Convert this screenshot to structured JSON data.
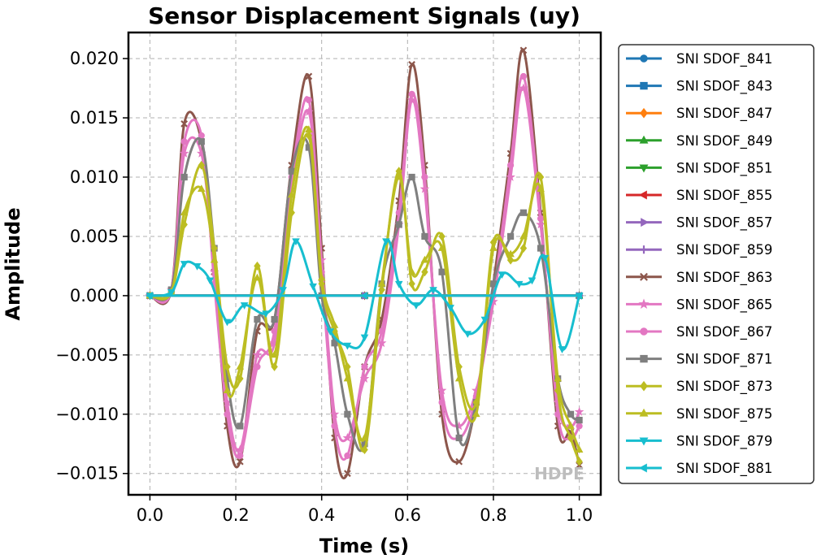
{
  "chart_data": {
    "type": "line",
    "title": "Sensor Displacement Signals (uy)",
    "xlabel": "Time (s)",
    "ylabel": "Amplitude",
    "xlim": [
      -0.05,
      1.05
    ],
    "ylim": [
      -0.0168,
      0.0222
    ],
    "x_ticks": [
      0.0,
      0.2,
      0.4,
      0.6,
      0.8,
      1.0
    ],
    "x_tick_labels": [
      "0.0",
      "0.2",
      "0.4",
      "0.6",
      "0.8",
      "1.0"
    ],
    "y_ticks": [
      -0.015,
      -0.01,
      -0.005,
      0.0,
      0.005,
      0.01,
      0.015,
      0.02
    ],
    "y_tick_labels": [
      "−0.015",
      "−0.010",
      "−0.005",
      "0.000",
      "0.005",
      "0.010",
      "0.015",
      "0.020"
    ],
    "grid": true,
    "legend_position": "outside-right",
    "annotation": "HDPE",
    "series": [
      {
        "name": "SNI SDOF_841",
        "color": "#1f77b4",
        "marker": "circle",
        "x": [
          0.0,
          0.5,
          1.0
        ],
        "y": [
          0.0,
          0.0,
          0.0
        ]
      },
      {
        "name": "SNI SDOF_843",
        "color": "#1f77b4",
        "marker": "square",
        "x": [
          0.0,
          0.5,
          1.0
        ],
        "y": [
          0.0,
          0.0,
          0.0
        ]
      },
      {
        "name": "SNI SDOF_847",
        "color": "#ff7f0e",
        "marker": "diamond",
        "x": [
          0.0,
          0.5,
          1.0
        ],
        "y": [
          0.0,
          0.0,
          0.0
        ]
      },
      {
        "name": "SNI SDOF_849",
        "color": "#2ca02c",
        "marker": "triangle-up",
        "x": [
          0.0,
          0.5,
          1.0
        ],
        "y": [
          0.0,
          0.0,
          0.0
        ]
      },
      {
        "name": "SNI SDOF_851",
        "color": "#2ca02c",
        "marker": "triangle-down",
        "x": [
          0.0,
          0.5,
          1.0
        ],
        "y": [
          0.0,
          0.0,
          0.0
        ]
      },
      {
        "name": "SNI SDOF_855",
        "color": "#d62728",
        "marker": "triangle-left",
        "x": [
          0.0,
          0.5,
          1.0
        ],
        "y": [
          0.0,
          0.0,
          0.0
        ]
      },
      {
        "name": "SNI SDOF_857",
        "color": "#9467bd",
        "marker": "triangle-right",
        "x": [
          0.0,
          0.5,
          1.0
        ],
        "y": [
          0.0,
          0.0,
          0.0
        ]
      },
      {
        "name": "SNI SDOF_859",
        "color": "#9467bd",
        "marker": "plus",
        "x": [
          0.0,
          0.5,
          1.0
        ],
        "y": [
          0.0,
          0.0,
          0.0
        ]
      },
      {
        "name": "SNI SDOF_863",
        "color": "#8c564b",
        "marker": "x",
        "x": [
          0.0,
          0.05,
          0.08,
          0.12,
          0.15,
          0.18,
          0.21,
          0.25,
          0.29,
          0.33,
          0.37,
          0.4,
          0.43,
          0.46,
          0.5,
          0.54,
          0.58,
          0.61,
          0.64,
          0.68,
          0.72,
          0.76,
          0.8,
          0.84,
          0.87,
          0.91,
          0.95,
          0.98,
          1.0
        ],
        "y": [
          0.0,
          0.0005,
          0.0145,
          0.013,
          0.002,
          -0.011,
          -0.014,
          -0.003,
          -0.002,
          0.011,
          0.0185,
          0.004,
          -0.012,
          -0.015,
          -0.006,
          -0.002,
          0.008,
          0.0195,
          0.011,
          -0.01,
          -0.014,
          -0.009,
          0.001,
          0.012,
          0.0207,
          0.007,
          -0.011,
          -0.0115,
          -0.0143
        ]
      },
      {
        "name": "SNI SDOF_865",
        "color": "#e377c2",
        "marker": "star",
        "x": [
          0.0,
          0.05,
          0.08,
          0.12,
          0.15,
          0.18,
          0.21,
          0.25,
          0.29,
          0.33,
          0.37,
          0.4,
          0.43,
          0.46,
          0.5,
          0.54,
          0.58,
          0.61,
          0.64,
          0.68,
          0.72,
          0.76,
          0.8,
          0.84,
          0.87,
          0.91,
          0.95,
          0.98,
          1.0
        ],
        "y": [
          0.0,
          0.0005,
          0.012,
          0.012,
          0.002,
          -0.009,
          -0.013,
          -0.005,
          -0.004,
          0.009,
          0.0155,
          0.003,
          -0.01,
          -0.012,
          -0.007,
          -0.004,
          0.006,
          0.0165,
          0.009,
          -0.008,
          -0.011,
          -0.008,
          -0.0005,
          0.01,
          0.0175,
          0.006,
          -0.009,
          -0.011,
          -0.0098
        ]
      },
      {
        "name": "SNI SDOF_867",
        "color": "#e377c2",
        "marker": "circle",
        "x": [
          0.0,
          0.05,
          0.08,
          0.12,
          0.15,
          0.18,
          0.21,
          0.25,
          0.29,
          0.33,
          0.37,
          0.4,
          0.43,
          0.46,
          0.5,
          0.54,
          0.58,
          0.61,
          0.64,
          0.68,
          0.72,
          0.76,
          0.8,
          0.84,
          0.87,
          0.91,
          0.95,
          0.98,
          1.0
        ],
        "y": [
          0.0,
          0.0005,
          0.013,
          0.0135,
          0.001,
          -0.01,
          -0.0135,
          -0.006,
          -0.003,
          0.01,
          0.0165,
          0.002,
          -0.011,
          -0.0135,
          -0.006,
          -0.003,
          0.007,
          0.017,
          0.01,
          -0.009,
          -0.012,
          -0.0085,
          0.0,
          0.011,
          0.0185,
          0.0065,
          -0.01,
          -0.012,
          -0.011
        ]
      },
      {
        "name": "SNI SDOF_871",
        "color": "#7f7f7f",
        "marker": "square",
        "x": [
          0.0,
          0.05,
          0.08,
          0.12,
          0.15,
          0.18,
          0.21,
          0.25,
          0.29,
          0.33,
          0.37,
          0.4,
          0.43,
          0.46,
          0.5,
          0.54,
          0.58,
          0.61,
          0.64,
          0.68,
          0.72,
          0.76,
          0.8,
          0.84,
          0.87,
          0.91,
          0.95,
          0.98,
          1.0
        ],
        "y": [
          0.0,
          0.0005,
          0.01,
          0.013,
          0.004,
          -0.007,
          -0.011,
          -0.002,
          -0.002,
          0.0105,
          0.0125,
          0.0,
          -0.004,
          -0.01,
          -0.0125,
          0.001,
          0.006,
          0.01,
          0.005,
          0.002,
          -0.012,
          -0.009,
          0.001,
          0.005,
          0.007,
          0.004,
          -0.007,
          -0.01,
          -0.0105
        ]
      },
      {
        "name": "SNI SDOF_873",
        "color": "#bcbd22",
        "marker": "diamond",
        "x": [
          0.0,
          0.05,
          0.08,
          0.12,
          0.15,
          0.18,
          0.21,
          0.25,
          0.29,
          0.33,
          0.37,
          0.4,
          0.43,
          0.46,
          0.5,
          0.54,
          0.58,
          0.61,
          0.64,
          0.68,
          0.72,
          0.76,
          0.8,
          0.84,
          0.87,
          0.91,
          0.95,
          0.98,
          1.0
        ],
        "y": [
          0.0,
          0.0003,
          0.006,
          0.011,
          0.004,
          -0.006,
          -0.007,
          0.0025,
          -0.006,
          0.007,
          0.0135,
          0.001,
          -0.003,
          -0.006,
          -0.013,
          0.0005,
          0.0105,
          0.001,
          0.002,
          0.005,
          -0.006,
          -0.009,
          0.0045,
          0.003,
          0.004,
          0.01,
          -0.008,
          -0.012,
          -0.014
        ]
      },
      {
        "name": "SNI SDOF_875",
        "color": "#bcbd22",
        "marker": "triangle-up",
        "x": [
          0.0,
          0.05,
          0.08,
          0.12,
          0.15,
          0.18,
          0.21,
          0.25,
          0.29,
          0.33,
          0.37,
          0.4,
          0.43,
          0.46,
          0.5,
          0.54,
          0.58,
          0.61,
          0.64,
          0.68,
          0.72,
          0.76,
          0.8,
          0.84,
          0.87,
          0.91,
          0.95,
          0.98,
          1.0
        ],
        "y": [
          0.0,
          0.0003,
          0.007,
          0.009,
          0.003,
          -0.008,
          -0.006,
          0.0015,
          -0.005,
          0.0085,
          0.014,
          0.0015,
          -0.0025,
          -0.007,
          -0.012,
          0.001,
          0.01,
          0.002,
          0.003,
          0.004,
          -0.007,
          -0.01,
          0.004,
          0.0035,
          0.005,
          0.009,
          -0.007,
          -0.011,
          -0.013
        ]
      },
      {
        "name": "SNI SDOF_879",
        "color": "#17becf",
        "marker": "triangle-down",
        "x": [
          0.0,
          0.05,
          0.08,
          0.11,
          0.14,
          0.18,
          0.22,
          0.27,
          0.31,
          0.34,
          0.38,
          0.42,
          0.46,
          0.5,
          0.55,
          0.58,
          0.62,
          0.66,
          0.7,
          0.74,
          0.78,
          0.82,
          0.86,
          0.89,
          0.92,
          0.96,
          1.0
        ],
        "y": [
          0.0,
          0.0003,
          0.0027,
          0.0025,
          0.0013,
          -0.0022,
          -0.0008,
          -0.0015,
          0.0005,
          0.0046,
          0.0008,
          -0.003,
          -0.0042,
          -0.0035,
          0.0046,
          0.001,
          -0.0008,
          0.0005,
          -0.001,
          -0.0032,
          -0.002,
          0.0018,
          0.001,
          0.0013,
          0.0032,
          -0.0045,
          0.0
        ]
      },
      {
        "name": "SNI SDOF_881",
        "color": "#17becf",
        "marker": "triangle-left",
        "x": [
          0.0,
          0.5,
          1.0
        ],
        "y": [
          0.0,
          0.0,
          0.0
        ]
      }
    ]
  }
}
